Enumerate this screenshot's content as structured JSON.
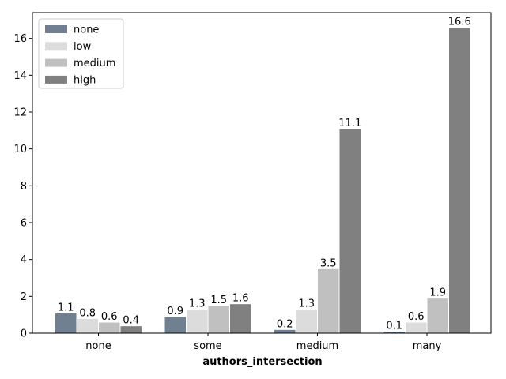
{
  "chart_data": {
    "type": "bar",
    "xlabel": "authors_intersection",
    "ylabel": "",
    "categories": [
      "none",
      "some",
      "medium",
      "many"
    ],
    "ylim": [
      0,
      17.4
    ],
    "yticks": [
      0,
      2,
      4,
      6,
      8,
      10,
      12,
      14,
      16
    ],
    "grid": false,
    "legend": "top-left",
    "series": [
      {
        "name": "none",
        "color": "#708090",
        "values": [
          1.1,
          0.9,
          0.2,
          0.1
        ]
      },
      {
        "name": "low",
        "color": "#dcdcdc",
        "values": [
          0.8,
          1.3,
          1.3,
          0.6
        ]
      },
      {
        "name": "medium",
        "color": "#c0c0c0",
        "values": [
          0.6,
          1.5,
          3.5,
          1.9
        ]
      },
      {
        "name": "high",
        "color": "#808080",
        "values": [
          0.4,
          1.6,
          11.1,
          16.6
        ]
      }
    ]
  }
}
